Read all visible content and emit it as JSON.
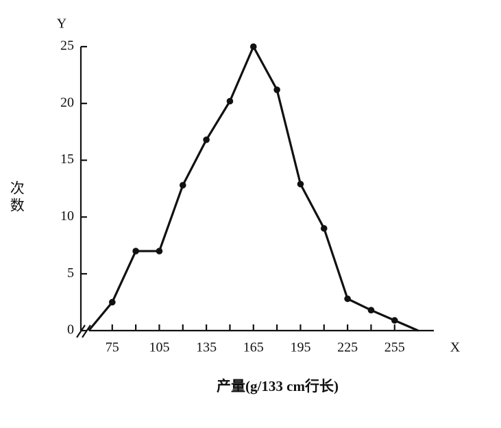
{
  "chart_data": {
    "type": "line",
    "y_axis_letter": "Y",
    "x_axis_letter": "X",
    "ylabel": "次数",
    "xlabel": "产量(g/133 cm行长)",
    "x": [
      60,
      75,
      90,
      105,
      120,
      135,
      150,
      165,
      180,
      195,
      210,
      225,
      240,
      255,
      270
    ],
    "series": [
      {
        "color": "#111111",
        "values": [
          0,
          2.5,
          7,
          7,
          12.8,
          16.8,
          20.2,
          25,
          21.2,
          12.9,
          9,
          2.8,
          1.8,
          0.9,
          0
        ]
      }
    ],
    "xlim": [
      55,
      280
    ],
    "xticks": [
      75,
      105,
      135,
      165,
      195,
      225,
      255
    ],
    "xminor": [
      90,
      120,
      150,
      180,
      210,
      240
    ],
    "ylim": [
      0,
      25
    ],
    "yticks": [
      0,
      5,
      10,
      15,
      20,
      25
    ]
  }
}
